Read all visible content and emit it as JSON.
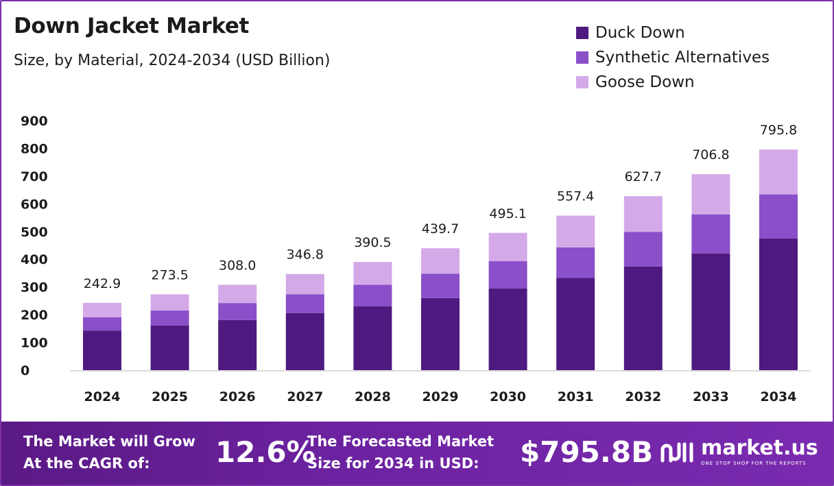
{
  "header": {
    "title": "Down Jacket Market",
    "subtitle": "Size, by Material, 2024-2034 (USD Billion)"
  },
  "colors": {
    "duck_down": "#4e1a80",
    "synthetic": "#8a4fc9",
    "goose_down": "#d4a9e8",
    "border": "#7b2fa8",
    "footer": "#6c22a0"
  },
  "chart_data": {
    "type": "bar",
    "stacked": true,
    "categories": [
      "2024",
      "2025",
      "2026",
      "2027",
      "2028",
      "2029",
      "2030",
      "2031",
      "2032",
      "2033",
      "2034"
    ],
    "series": [
      {
        "name": "Duck Down",
        "values": [
          143,
          161,
          181,
          206,
          230,
          260,
          295,
          333,
          374,
          421,
          475
        ]
      },
      {
        "name": "Synthetic Alternatives",
        "values": [
          48,
          54,
          61,
          68,
          78,
          88,
          98,
          110,
          125,
          141,
          159
        ]
      },
      {
        "name": "Goose Down",
        "values": [
          51.9,
          58.5,
          66.0,
          72.8,
          82.5,
          91.7,
          102.1,
          114.4,
          128.7,
          144.8,
          161.8
        ]
      }
    ],
    "totals": [
      "242.9",
      "273.5",
      "308.0",
      "346.8",
      "390.5",
      "439.7",
      "495.1",
      "557.4",
      "627.7",
      "706.8",
      "795.8"
    ],
    "yticks": [
      "0",
      "100",
      "200",
      "300",
      "400",
      "500",
      "600",
      "700",
      "800",
      "900"
    ],
    "ylim": [
      0,
      900
    ],
    "legend_position": "top-right",
    "grid": false
  },
  "legend": {
    "items": [
      {
        "label": "Duck Down"
      },
      {
        "label": "Synthetic Alternatives"
      },
      {
        "label": "Goose Down"
      }
    ]
  },
  "footer": {
    "cagr_label_line1": "The Market will Grow",
    "cagr_label_line2": "At the CAGR of:",
    "cagr_value": "12.6%",
    "forecast_label_line1": "The Forecasted Market",
    "forecast_label_line2": "Size for 2034 in USD:",
    "forecast_value": "$795.8B",
    "brand_name": "market.us",
    "brand_tagline": "ONE STOP SHOP FOR THE REPORTS"
  }
}
